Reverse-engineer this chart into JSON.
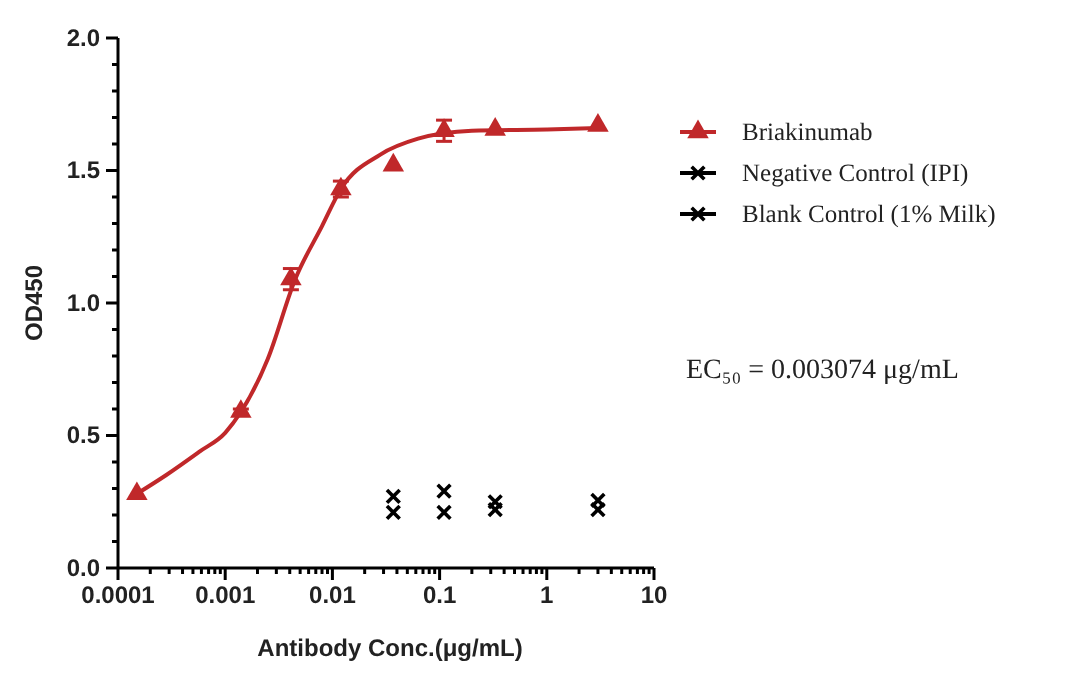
{
  "chart_data": {
    "type": "scatter",
    "xlabel": "Antibody Conc.(μg/mL)",
    "ylabel": "OD450",
    "log": "x",
    "legend": "right",
    "grid": false,
    "xlim": [
      0.0001,
      10
    ],
    "ylim": [
      0,
      2
    ],
    "xticks": [
      0.0001,
      {
        "value": 0.0002,
        "label": null
      },
      {
        "value": 0.0003,
        "label": null
      },
      {
        "value": 0.0004,
        "label": null
      },
      {
        "value": 0.0005,
        "label": null
      },
      {
        "value": 0.0006,
        "label": null
      },
      {
        "value": 0.0007,
        "label": null
      },
      {
        "value": 0.0008,
        "label": null
      },
      {
        "value": 0.0009,
        "label": null
      },
      0.001,
      {
        "value": 0.002,
        "label": null
      },
      {
        "value": 0.003,
        "label": null
      },
      {
        "value": 0.004,
        "label": null
      },
      {
        "value": 0.005,
        "label": null
      },
      {
        "value": 0.006,
        "label": null
      },
      {
        "value": 0.007,
        "label": null
      },
      {
        "value": 0.008,
        "label": null
      },
      {
        "value": 0.009,
        "label": null
      },
      0.01,
      {
        "value": 0.02,
        "label": null
      },
      {
        "value": 0.03,
        "label": null
      },
      {
        "value": 0.04,
        "label": null
      },
      {
        "value": 0.05,
        "label": null
      },
      {
        "value": 0.06,
        "label": null
      },
      {
        "value": 0.07,
        "label": null
      },
      {
        "value": 0.08,
        "label": null
      },
      {
        "value": 0.09,
        "label": null
      },
      0.1,
      {
        "value": 0.2,
        "label": null
      },
      {
        "value": 0.3,
        "label": null
      },
      {
        "value": 0.4,
        "label": null
      },
      {
        "value": 0.5,
        "label": null
      },
      {
        "value": 0.6,
        "label": null
      },
      {
        "value": 0.7,
        "label": null
      },
      {
        "value": 0.8,
        "label": null
      },
      {
        "value": 0.9,
        "label": null
      },
      1,
      {
        "value": 2,
        "label": null
      },
      {
        "value": 3,
        "label": null
      },
      {
        "value": 4,
        "label": null
      },
      {
        "value": 5,
        "label": null
      },
      {
        "value": 6,
        "label": null
      },
      {
        "value": 7,
        "label": null
      },
      {
        "value": 8,
        "label": null
      },
      {
        "value": 9,
        "label": null
      },
      10
    ],
    "yticks": [
      {
        "value": 0,
        "label": "0.0"
      },
      {
        "value": 0.1,
        "label": null
      },
      {
        "value": 0.2,
        "label": null
      },
      {
        "value": 0.3,
        "label": null
      },
      {
        "value": 0.4,
        "label": null
      },
      {
        "value": 0.5,
        "label": "0.5"
      },
      {
        "value": 0.6,
        "label": null
      },
      {
        "value": 0.7,
        "label": null
      },
      {
        "value": 0.8,
        "label": null
      },
      {
        "value": 0.9,
        "label": null
      },
      {
        "value": 1,
        "label": "1.0"
      },
      {
        "value": 1.1,
        "label": null
      },
      {
        "value": 1.2,
        "label": null
      },
      {
        "value": 1.3,
        "label": null
      },
      {
        "value": 1.4,
        "label": null
      },
      {
        "value": 1.5,
        "label": "1.5"
      },
      {
        "value": 1.6,
        "label": null
      },
      {
        "value": 1.7,
        "label": null
      },
      {
        "value": 1.8,
        "label": null
      },
      {
        "value": 1.9,
        "label": null
      },
      {
        "value": 2,
        "label": "2.0"
      }
    ],
    "annotations": [
      "EC₅₀ = 0.003074 μg/mL"
    ],
    "series": [
      {
        "type": "line",
        "color": "#c0282a",
        "marker": "none",
        "x": [
          0.00015,
          0.00028,
          0.00058,
          0.001,
          0.0025,
          0.0045,
          0.008,
          0.012,
          0.028,
          0.063,
          0.2,
          1,
          3
        ],
        "values": [
          0.28,
          0.35,
          0.44,
          0.51,
          0.79,
          1.09,
          1.29,
          1.43,
          1.56,
          1.62,
          1.65,
          1.655,
          1.66
        ]
      },
      {
        "name": "Briakinumab",
        "color": "#c0282a",
        "marker": "triangle",
        "x": [
          0.00015,
          0.0014,
          0.0041,
          0.012,
          0.037,
          0.11,
          0.33,
          3
        ],
        "values": [
          0.28,
          0.59,
          1.09,
          1.43,
          1.52,
          1.65,
          1.655,
          1.67
        ],
        "errors": [
          null,
          0.01,
          0.04,
          0.03,
          null,
          0.04,
          null,
          null
        ]
      },
      {
        "name": "Negative Control (IPI)",
        "color": "#000000",
        "marker": "cross",
        "x": [
          0.037,
          0.11,
          0.33,
          3
        ],
        "values": [
          0.27,
          0.29,
          0.25,
          0.255
        ]
      },
      {
        "name": "Blank Control (1% Milk)",
        "color": "#000000",
        "marker": "cross",
        "x": [
          0.037,
          0.11,
          0.33,
          3
        ],
        "values": [
          0.21,
          0.21,
          0.22,
          0.22
        ]
      }
    ]
  }
}
